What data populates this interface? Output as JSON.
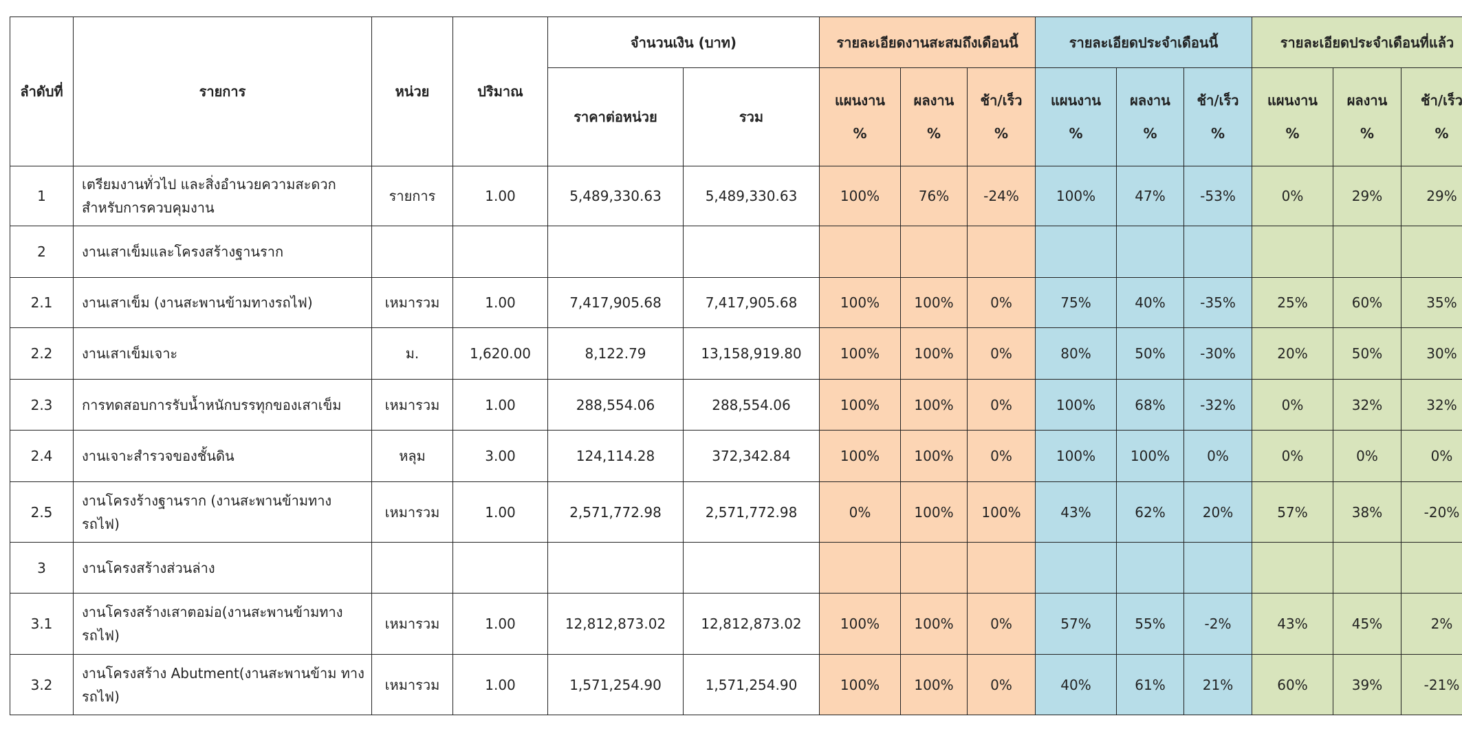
{
  "header": {
    "no": "ลำดับที่",
    "item": "รายการ",
    "unit": "หน่วย",
    "qty": "ปริมาณ",
    "amount": "จำนวนเงิน (บาท)",
    "unit_price": "ราคาต่อหน่วย",
    "total": "รวม",
    "groups": [
      "รายละเอียดงานสะสมถึงเดือนนี้",
      "รายละเอียดประจำเดือนนี้",
      "รายละเอียดประจำเดือนที่แล้ว"
    ],
    "sub": [
      "แผนงาน",
      "ผลงาน",
      "ช้า/เร็ว"
    ],
    "pct": "%"
  },
  "colors": {
    "cumulative": "#fcd5b4",
    "this_month": "#b7dde8",
    "last_month": "#d8e4bc"
  },
  "rows": [
    {
      "no": "1",
      "item": "เตรียมงานทั่วไป และสิ่งอำนวยความสะดวก สำหรับการควบคุมงาน",
      "unit": "รายการ",
      "qty": "1.00",
      "unit_price": "5,489,330.63",
      "total": "5,489,330.63",
      "vals": [
        "100%",
        "76%",
        "-24%",
        "100%",
        "47%",
        "-53%",
        "0%",
        "29%",
        "29%"
      ]
    },
    {
      "no": "2",
      "item": "งานเสาเข็มและโครงสร้างฐานราก",
      "unit": "",
      "qty": "",
      "unit_price": "",
      "total": "",
      "vals": [
        "",
        "",
        "",
        "",
        "",
        "",
        "",
        "",
        ""
      ]
    },
    {
      "no": "2.1",
      "item": "งานเสาเข็ม (งานสะพานข้ามทางรถไฟ)",
      "unit": "เหมารวม",
      "qty": "1.00",
      "unit_price": "7,417,905.68",
      "total": "7,417,905.68",
      "vals": [
        "100%",
        "100%",
        "0%",
        "75%",
        "40%",
        "-35%",
        "25%",
        "60%",
        "35%"
      ]
    },
    {
      "no": "2.2",
      "item": "งานเสาเข็มเจาะ",
      "unit": "ม.",
      "qty": "1,620.00",
      "unit_price": "8,122.79",
      "total": "13,158,919.80",
      "vals": [
        "100%",
        "100%",
        "0%",
        "80%",
        "50%",
        "-30%",
        "20%",
        "50%",
        "30%"
      ]
    },
    {
      "no": "2.3",
      "item": "การทดสอบการรับน้ำหนักบรรทุกของเสาเข็ม",
      "unit": "เหมารวม",
      "qty": "1.00",
      "unit_price": "288,554.06",
      "total": "288,554.06",
      "vals": [
        "100%",
        "100%",
        "0%",
        "100%",
        "68%",
        "-32%",
        "0%",
        "32%",
        "32%"
      ]
    },
    {
      "no": "2.4",
      "item": "งานเจาะสำรวจของชั้นดิน",
      "unit": "หลุม",
      "qty": "3.00",
      "unit_price": "124,114.28",
      "total": "372,342.84",
      "vals": [
        "100%",
        "100%",
        "0%",
        "100%",
        "100%",
        "0%",
        "0%",
        "0%",
        "0%"
      ]
    },
    {
      "no": "2.5",
      "item": "งานโครงร้างฐานราก (งานสะพานข้ามทาง รถไฟ)",
      "unit": "เหมารวม",
      "qty": "1.00",
      "unit_price": "2,571,772.98",
      "total": "2,571,772.98",
      "vals": [
        "0%",
        "100%",
        "100%",
        "43%",
        "62%",
        "20%",
        "57%",
        "38%",
        "-20%"
      ]
    },
    {
      "no": "3",
      "item": "งานโครงสร้างส่วนล่าง",
      "unit": "",
      "qty": "",
      "unit_price": "",
      "total": "",
      "vals": [
        "",
        "",
        "",
        "",
        "",
        "",
        "",
        "",
        ""
      ]
    },
    {
      "no": "3.1",
      "item": "งานโครงสร้างเสาตอม่อ(งานสะพานข้ามทาง รถไฟ)",
      "unit": "เหมารวม",
      "qty": "1.00",
      "unit_price": "12,812,873.02",
      "total": "12,812,873.02",
      "vals": [
        "100%",
        "100%",
        "0%",
        "57%",
        "55%",
        "-2%",
        "43%",
        "45%",
        "2%"
      ]
    },
    {
      "no": "3.2",
      "item": "งานโครงสร้าง Abutment(งานสะพานข้าม ทางรถไฟ)",
      "unit": "เหมารวม",
      "qty": "1.00",
      "unit_price": "1,571,254.90",
      "total": "1,571,254.90",
      "vals": [
        "100%",
        "100%",
        "0%",
        "40%",
        "61%",
        "21%",
        "60%",
        "39%",
        "-21%"
      ]
    }
  ]
}
